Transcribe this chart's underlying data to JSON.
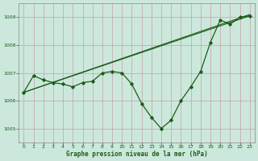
{
  "title": "Graphe pression niveau de la mer (hPa)",
  "background_color": "#cce8dc",
  "grid_color_major": "#aaccbb",
  "grid_color_minor": "#ddf0e8",
  "line_color": "#1a5c1a",
  "marker_color": "#1a5c1a",
  "xlim": [
    -0.5,
    23.5
  ],
  "ylim": [
    1004.5,
    1009.5
  ],
  "yticks": [
    1005,
    1006,
    1007,
    1008,
    1009
  ],
  "xticks": [
    0,
    1,
    2,
    3,
    4,
    5,
    6,
    7,
    8,
    9,
    10,
    11,
    12,
    13,
    14,
    15,
    16,
    17,
    18,
    19,
    20,
    21,
    22,
    23
  ],
  "line1_x": [
    0,
    1,
    2,
    3,
    4,
    5,
    6,
    7,
    8,
    9,
    10,
    11,
    12,
    13,
    14,
    15,
    16,
    17,
    18,
    19,
    20,
    21,
    22,
    23
  ],
  "line1_y": [
    1006.3,
    1006.9,
    1006.75,
    1006.65,
    1006.6,
    1006.5,
    1006.65,
    1006.7,
    1007.0,
    1007.05,
    1007.0,
    1006.6,
    1005.9,
    1005.4,
    1005.0,
    1005.3,
    1006.0,
    1006.5,
    1007.05,
    1008.1,
    1008.9,
    1008.75,
    1009.0,
    1009.05
  ],
  "line2_x": [
    0,
    23
  ],
  "line2_y": [
    1006.3,
    1009.05
  ],
  "line3_x": [
    0,
    23
  ],
  "line3_y": [
    1006.3,
    1009.1
  ]
}
